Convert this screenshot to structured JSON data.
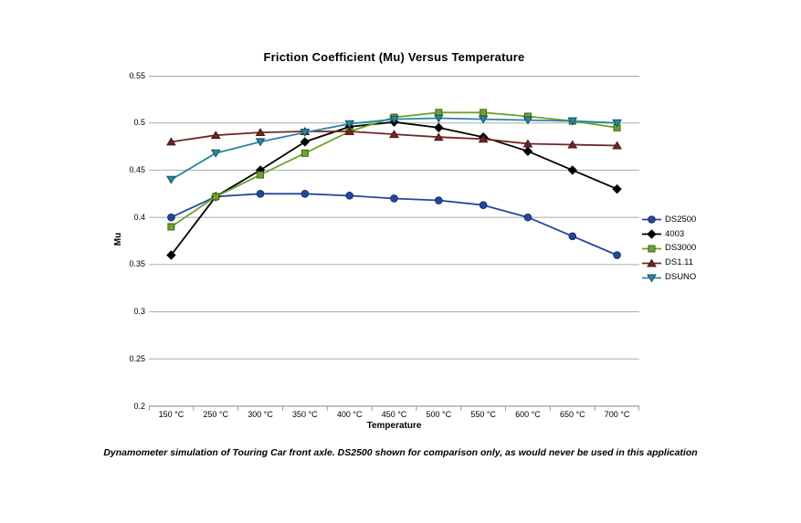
{
  "page": {
    "background": "#ffffff"
  },
  "chart_data": {
    "type": "line",
    "title": "Friction Coefficient (Mu) Versus Temperature",
    "xlabel": "Temperature",
    "ylabel": "Mu",
    "categories": [
      "150 °C",
      "250 °C",
      "300 °C",
      "350 °C",
      "400 °C",
      "450 °C",
      "500 °C",
      "550 °C",
      "600 °C",
      "650 °C",
      "700 °C"
    ],
    "yticks": [
      "0.55",
      "0.5",
      "0.45",
      "0.4",
      "0.35",
      "0.3",
      "0.25",
      "0.2"
    ],
    "ylim": [
      0.2,
      0.55
    ],
    "grid": true,
    "legend_position": "right",
    "grid_color": "#ababab",
    "axis_color": "#9b9b9b",
    "series": [
      {
        "name": "DS2500",
        "color": "#24489e",
        "marker": "circle",
        "values": [
          0.4,
          0.422,
          0.425,
          0.425,
          0.423,
          0.42,
          0.418,
          0.413,
          0.4,
          0.38,
          0.36
        ]
      },
      {
        "name": "4003",
        "color": "#000000",
        "marker": "diamond",
        "values": [
          0.36,
          0.422,
          0.45,
          0.48,
          0.496,
          0.501,
          0.495,
          0.485,
          0.47,
          0.45,
          0.43
        ]
      },
      {
        "name": "DS3000",
        "color": "#6da32c",
        "marker": "square",
        "values": [
          0.39,
          0.422,
          0.445,
          0.468,
          0.491,
          0.506,
          0.511,
          0.511,
          0.507,
          0.502,
          0.495
        ]
      },
      {
        "name": "DS1.11",
        "color": "#702626",
        "marker": "triangle-up",
        "values": [
          0.48,
          0.487,
          0.49,
          0.491,
          0.491,
          0.488,
          0.485,
          0.483,
          0.478,
          0.477,
          0.476
        ]
      },
      {
        "name": "DSUNO",
        "color": "#2b86a4",
        "marker": "triangle-down",
        "values": [
          0.44,
          0.468,
          0.48,
          0.49,
          0.499,
          0.504,
          0.505,
          0.504,
          0.503,
          0.502,
          0.5
        ]
      }
    ],
    "caption": "Dynamometer simulation of Touring Car front axle. DS2500 shown for comparison only, as would never be used in this application"
  }
}
